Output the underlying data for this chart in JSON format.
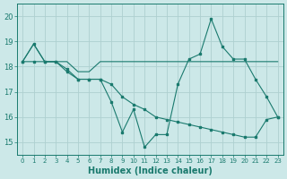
{
  "xlabel": "Humidex (Indice chaleur)",
  "x": [
    0,
    1,
    2,
    3,
    4,
    5,
    6,
    7,
    8,
    9,
    10,
    11,
    12,
    13,
    14,
    15,
    16,
    17,
    18,
    19,
    20,
    21,
    22,
    23
  ],
  "line1": [
    18.2,
    18.9,
    18.2,
    18.2,
    18.2,
    17.8,
    17.8,
    18.2,
    18.2,
    18.2,
    18.2,
    18.2,
    18.2,
    18.2,
    18.2,
    18.2,
    18.2,
    18.2,
    18.2,
    18.2,
    18.2,
    18.2,
    18.2,
    18.2
  ],
  "line2": [
    18.2,
    18.2,
    18.2,
    18.2,
    17.9,
    17.5,
    17.5,
    17.5,
    17.3,
    16.8,
    16.5,
    16.3,
    16.0,
    15.9,
    15.8,
    15.7,
    15.6,
    15.5,
    15.4,
    15.3,
    15.2,
    15.2,
    15.9,
    16.0
  ],
  "line3": [
    18.2,
    18.9,
    18.2,
    18.2,
    17.8,
    17.5,
    17.5,
    17.5,
    16.6,
    15.4,
    16.3,
    14.8,
    15.3,
    15.3,
    17.3,
    18.3,
    18.5,
    19.9,
    18.8,
    18.3,
    18.3,
    17.5,
    16.8,
    16.0
  ],
  "line_color": "#1a7a6e",
  "bg_color": "#cce8e8",
  "grid_color": "#aed0d0",
  "ylim": [
    14.5,
    20.5
  ],
  "xlim": [
    -0.5,
    23.5
  ],
  "yticks": [
    15,
    16,
    17,
    18,
    19,
    20
  ],
  "xticks": [
    0,
    1,
    2,
    3,
    4,
    5,
    6,
    7,
    8,
    9,
    10,
    11,
    12,
    13,
    14,
    15,
    16,
    17,
    18,
    19,
    20,
    21,
    22,
    23
  ]
}
